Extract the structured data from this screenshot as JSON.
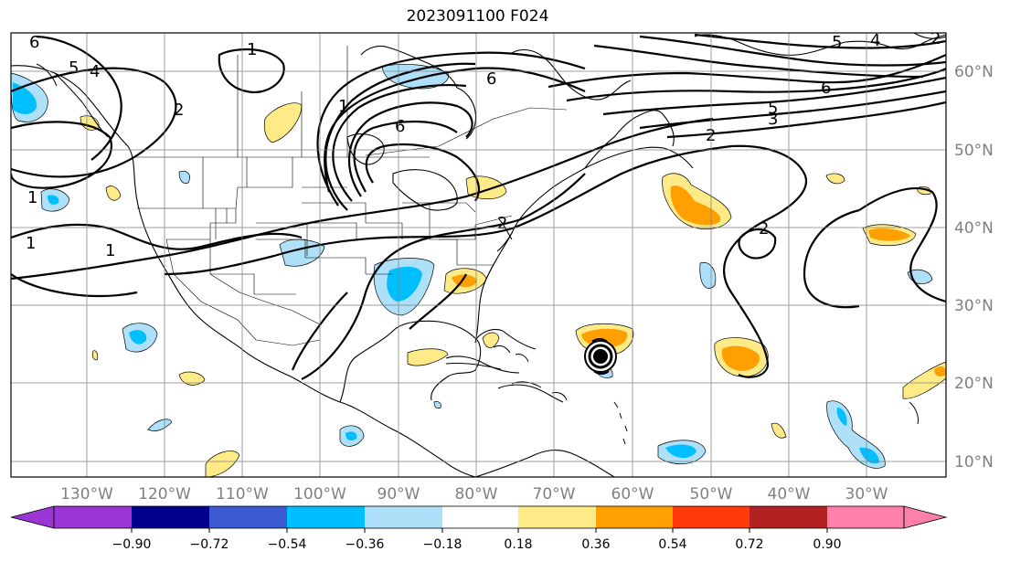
{
  "title": "2023091100 F024",
  "map": {
    "lon_labels": [
      "130°W",
      "120°W",
      "110°W",
      "100°W",
      "90°W",
      "80°W",
      "70°W",
      "60°W",
      "50°W",
      "40°W",
      "30°W"
    ],
    "lat_labels": [
      "60°N",
      "50°N",
      "40°N",
      "30°N",
      "20°N",
      "10°N"
    ],
    "contour_labels": [
      "6",
      "5",
      "4",
      "1",
      "2",
      "1",
      "1",
      "6",
      "6",
      "5",
      "3",
      "2",
      "2",
      "4",
      "5",
      "6",
      "2",
      "1",
      "1",
      "2"
    ],
    "storm_marker": "hurricane-symbol",
    "colors": {
      "land_line": "#000000",
      "grid": "#808080"
    }
  },
  "colorbar": {
    "levels": [
      "−0.90",
      "−0.72",
      "−0.54",
      "−0.36",
      "−0.18",
      "0.18",
      "0.36",
      "0.54",
      "0.72",
      "0.90"
    ],
    "colors": [
      "#9a35d6",
      "#00008c",
      "#3a5ad0",
      "#00bfff",
      "#aee0fa",
      "#ffffff",
      "#ffea88",
      "#ff9f00",
      "#ff3a0a",
      "#b22222",
      "#ff80a8"
    ]
  }
}
